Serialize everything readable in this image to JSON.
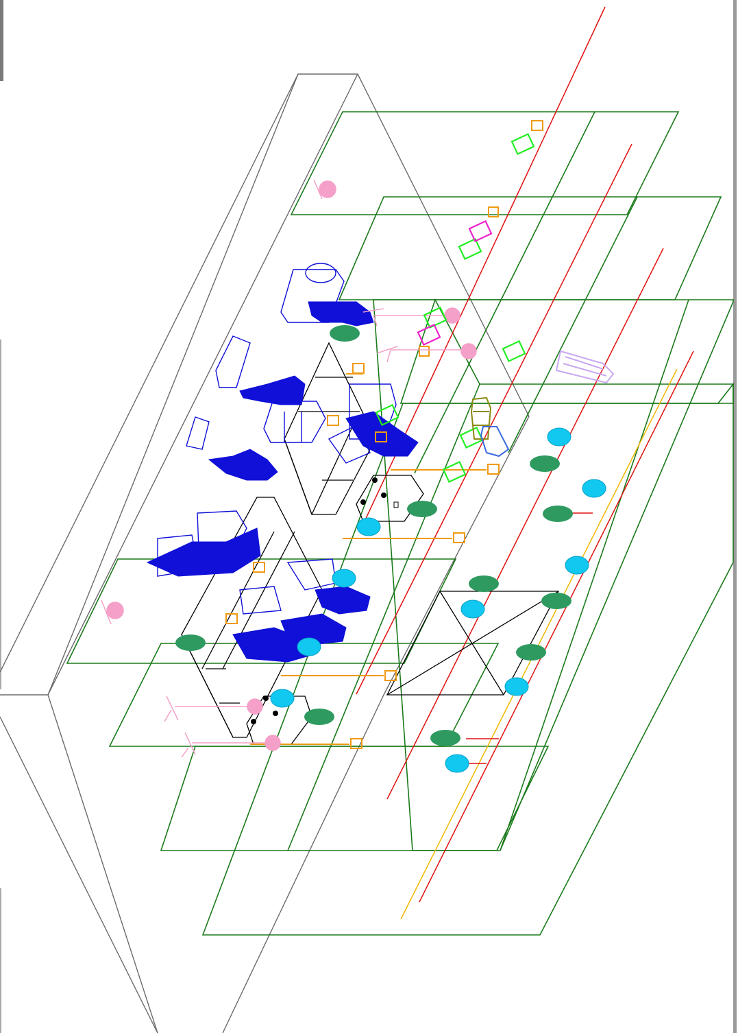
{
  "drawing": {
    "palette": {
      "room_outline": "#1a7a1a",
      "floor_outline": "#6b6b6b",
      "desk_outline": "#000000",
      "person": "#1010d8",
      "chair_orange": "#f09a10",
      "plant": "#2e9a60",
      "stool_cyan": "#10c8f0",
      "lamp_pink": "#f4a0c8",
      "printer_green": "#22ee22",
      "printer_magenta": "#ee22cc",
      "bench_lilac": "#c8a8f0",
      "cable_red": "#e01010",
      "cable_yellow": "#f0b800",
      "shelf_olive": "#8a8a10",
      "cabinet_blue": "#3a6ae0"
    }
  }
}
